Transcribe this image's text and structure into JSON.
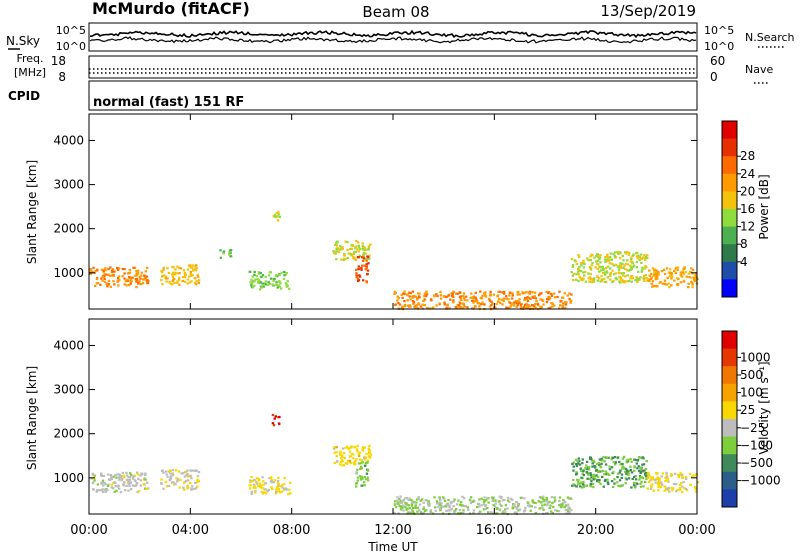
{
  "header": {
    "station": "McMurdo (fitACF)",
    "beam": "Beam 08",
    "date": "13/Sep/2019"
  },
  "noise_panel": {
    "left_label": "N.Sky",
    "right_label": "N.Search",
    "left_ticks": [
      "10^5",
      "10^0"
    ],
    "right_ticks": [
      "10^5",
      "10^0"
    ]
  },
  "freq_panel": {
    "left_label_1": "Freq.",
    "left_label_2": "[MHz]",
    "left_ticks": [
      "18",
      "8"
    ],
    "right_label": "Nave",
    "right_ticks": [
      "60",
      "0"
    ]
  },
  "cpid": {
    "label": "CPID",
    "program": "normal (fast) 151 RF"
  },
  "legend": {
    "power_title": "Power [dB]",
    "power_labels": [
      "28",
      "24",
      "20",
      "16",
      "12",
      "8",
      "4"
    ],
    "velocity_title": "Velocity [m s⁻¹]",
    "velocity_labels": [
      "1000",
      "500",
      "100",
      "25",
      "−25",
      "−100",
      "−500",
      "−1000"
    ]
  },
  "colors": {
    "power_scale": [
      "#0000ff",
      "#1e4ea8",
      "#2f7a48",
      "#4caf50",
      "#8fdd3c",
      "#f4c20d",
      "#ff9a00",
      "#ff6a00",
      "#e53000",
      "#e00000"
    ],
    "velocity_scale": [
      "#1c3fa8",
      "#2c5e8a",
      "#3e8a5a",
      "#7ccf3a",
      "#bdbdbd",
      "#f8d800",
      "#f6a300",
      "#f07800",
      "#e43800",
      "#e00000"
    ]
  },
  "chart_data": [
    {
      "type": "heatmap",
      "name": "power",
      "ylabel": "Slant Range [km]",
      "xlabel": "",
      "ylim": [
        180,
        4600
      ],
      "xlim_hours": [
        0,
        24
      ],
      "y_ticks": [
        "1000",
        "2000",
        "3000",
        "4000"
      ],
      "colorbar": {
        "label": "Power [dB]",
        "range": [
          0,
          32
        ]
      },
      "echo_regions": [
        {
          "t": [
            0.0,
            2.3
          ],
          "r": [
            700,
            1150
          ],
          "value": 22
        },
        {
          "t": [
            2.8,
            4.3
          ],
          "r": [
            750,
            1200
          ],
          "value": 18
        },
        {
          "t": [
            5.1,
            5.6
          ],
          "r": [
            1350,
            1550
          ],
          "value": 12
        },
        {
          "t": [
            6.3,
            7.9
          ],
          "r": [
            650,
            1050
          ],
          "value": 14
        },
        {
          "t": [
            7.2,
            7.5
          ],
          "r": [
            2200,
            2450
          ],
          "value": 16
        },
        {
          "t": [
            9.6,
            11.1
          ],
          "r": [
            1300,
            1750
          ],
          "value": 16
        },
        {
          "t": [
            10.5,
            11.0
          ],
          "r": [
            800,
            1400
          ],
          "value": 26
        },
        {
          "t": [
            12.0,
            19.0
          ],
          "r": [
            200,
            600
          ],
          "value": 22
        },
        {
          "t": [
            19.0,
            22.0
          ],
          "r": [
            800,
            1500
          ],
          "value": 16
        },
        {
          "t": [
            22.0,
            24.0
          ],
          "r": [
            700,
            1150
          ],
          "value": 20
        }
      ]
    },
    {
      "type": "heatmap",
      "name": "velocity",
      "ylabel": "Slant Range [km]",
      "xlabel": "Time UT",
      "ylim": [
        180,
        4600
      ],
      "xlim_hours": [
        0,
        24
      ],
      "x_ticks": [
        "00:00",
        "04:00",
        "08:00",
        "12:00",
        "16:00",
        "20:00",
        "00:00"
      ],
      "y_ticks": [
        "1000",
        "2000",
        "3000",
        "4000"
      ],
      "colorbar": {
        "label": "Velocity [m s⁻¹]",
        "range": [
          -1000,
          1000
        ]
      },
      "echo_regions": [
        {
          "t": [
            0.0,
            2.3
          ],
          "r": [
            700,
            1150
          ],
          "value": -100
        },
        {
          "t": [
            2.8,
            4.3
          ],
          "r": [
            750,
            1200
          ],
          "value": -50
        },
        {
          "t": [
            6.3,
            7.9
          ],
          "r": [
            650,
            1050
          ],
          "value": 50
        },
        {
          "t": [
            7.2,
            7.5
          ],
          "r": [
            2200,
            2450
          ],
          "value": 800
        },
        {
          "t": [
            9.6,
            11.1
          ],
          "r": [
            1300,
            1750
          ],
          "value": 100
        },
        {
          "t": [
            10.5,
            11.0
          ],
          "r": [
            800,
            1400
          ],
          "value": -300
        },
        {
          "t": [
            12.0,
            19.0
          ],
          "r": [
            200,
            600
          ],
          "value": -200
        },
        {
          "t": [
            19.0,
            22.0
          ],
          "r": [
            800,
            1500
          ],
          "value": -400
        },
        {
          "t": [
            22.0,
            24.0
          ],
          "r": [
            700,
            1150
          ],
          "value": 60
        }
      ]
    }
  ]
}
